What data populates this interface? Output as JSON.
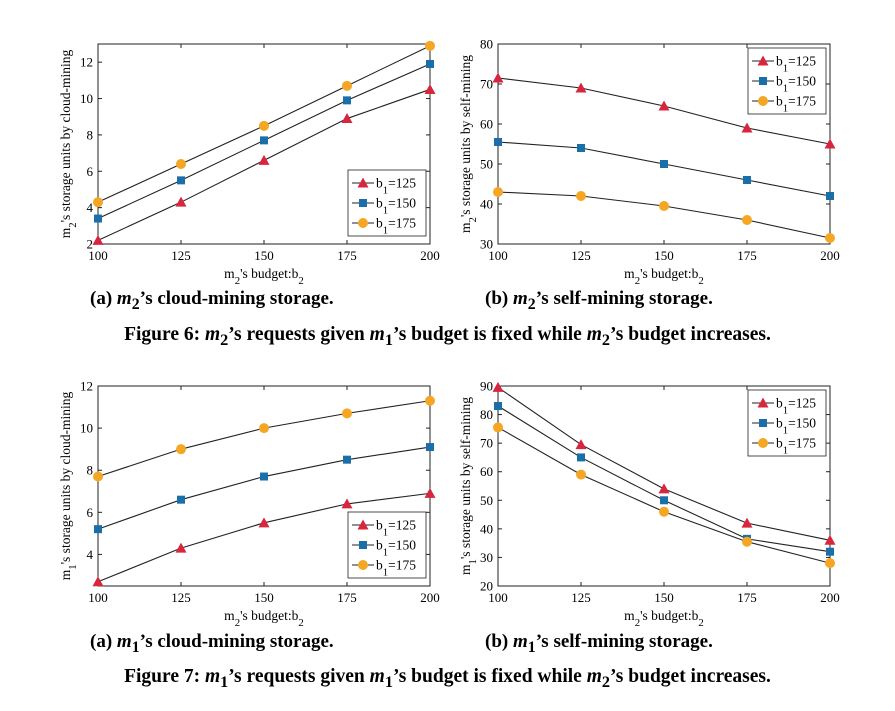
{
  "colors": {
    "b1_125": "#d7263d",
    "b1_150": "#1a6fa8",
    "b1_175": "#f5a623"
  },
  "figures": [
    {
      "caption": {
        "prefix": "Figure 6: ",
        "parts": [
          "m",
          "2",
          "’s requests given ",
          "m",
          "1",
          "’s budget is fixed while ",
          "m",
          "2",
          "’s budget increases."
        ]
      }
    },
    {
      "caption": {
        "prefix": "Figure 7: ",
        "parts": [
          "m",
          "1",
          "’s requests given ",
          "m",
          "1",
          "’s budget is fixed while ",
          "m",
          "2",
          "’s budget increases."
        ]
      }
    }
  ],
  "subcaptions": [
    {
      "label": "(a) ",
      "m": "m",
      "sub": "2",
      "text": "’s cloud-mining storage."
    },
    {
      "label": "(b) ",
      "m": "m",
      "sub": "2",
      "text": "’s self-mining storage."
    },
    {
      "label": "(a) ",
      "m": "m",
      "sub": "1",
      "text": "’s cloud-mining storage."
    },
    {
      "label": "(b) ",
      "m": "m",
      "sub": "1",
      "text": "’s self-mining storage."
    }
  ],
  "chart_data": [
    {
      "type": "line",
      "xlabel": "m_2's budget:b_2",
      "ylabel": "m_2's storage units by cloud-mining",
      "x": [
        100,
        125,
        150,
        175,
        200
      ],
      "xlim": [
        100,
        200
      ],
      "ylim": [
        2,
        13
      ],
      "yticks": [
        2,
        4,
        6,
        8,
        10,
        12
      ],
      "xticks": [
        100,
        125,
        150,
        175,
        200
      ],
      "legend": "lower-right",
      "series": [
        {
          "name": "b_1=125",
          "marker": "triangle",
          "values": [
            2.2,
            4.3,
            6.6,
            8.9,
            10.5
          ]
        },
        {
          "name": "b_1=150",
          "marker": "square",
          "values": [
            3.4,
            5.5,
            7.7,
            9.9,
            11.9
          ]
        },
        {
          "name": "b_1=175",
          "marker": "circle",
          "values": [
            4.3,
            6.4,
            8.5,
            10.7,
            12.9
          ]
        }
      ]
    },
    {
      "type": "line",
      "xlabel": "m_2's budget:b_2",
      "ylabel": "m_2's storage units by self-mining",
      "x": [
        100,
        125,
        150,
        175,
        200
      ],
      "xlim": [
        100,
        200
      ],
      "ylim": [
        30,
        80
      ],
      "yticks": [
        30,
        40,
        50,
        60,
        70,
        80
      ],
      "xticks": [
        100,
        125,
        150,
        175,
        200
      ],
      "legend": "top-right",
      "series": [
        {
          "name": "b_1=125",
          "marker": "triangle",
          "values": [
            71.5,
            69,
            64.5,
            59,
            55
          ]
        },
        {
          "name": "b_1=150",
          "marker": "square",
          "values": [
            55.5,
            54,
            50,
            46,
            42
          ]
        },
        {
          "name": "b_1=175",
          "marker": "circle",
          "values": [
            43,
            42,
            39.5,
            36,
            31.5
          ]
        }
      ]
    },
    {
      "type": "line",
      "xlabel": "m_2's budget:b_2",
      "ylabel": "m_1's storage units by cloud-mining",
      "x": [
        100,
        125,
        150,
        175,
        200
      ],
      "xlim": [
        100,
        200
      ],
      "ylim": [
        2.5,
        12
      ],
      "yticks": [
        4,
        6,
        8,
        10,
        12
      ],
      "xticks": [
        100,
        125,
        150,
        175,
        200
      ],
      "legend": "lower-right",
      "series": [
        {
          "name": "b_1=125",
          "marker": "triangle",
          "values": [
            2.7,
            4.3,
            5.5,
            6.4,
            6.9
          ]
        },
        {
          "name": "b_1=150",
          "marker": "square",
          "values": [
            5.2,
            6.6,
            7.7,
            8.5,
            9.1
          ]
        },
        {
          "name": "b_1=175",
          "marker": "circle",
          "values": [
            7.7,
            9.0,
            10.0,
            10.7,
            11.3
          ]
        }
      ]
    },
    {
      "type": "line",
      "xlabel": "m_2's budget:b_2",
      "ylabel": "m_1's storage units by self-mining",
      "x": [
        100,
        125,
        150,
        175,
        200
      ],
      "xlim": [
        100,
        200
      ],
      "ylim": [
        20,
        90
      ],
      "yticks": [
        20,
        30,
        40,
        50,
        60,
        70,
        80,
        90
      ],
      "xticks": [
        100,
        125,
        150,
        175,
        200
      ],
      "legend": "top-right",
      "series": [
        {
          "name": "b_1=125",
          "marker": "triangle",
          "values": [
            89.5,
            69.5,
            54,
            42,
            36
          ]
        },
        {
          "name": "b_1=150",
          "marker": "square",
          "values": [
            83,
            65,
            50,
            36.5,
            32
          ]
        },
        {
          "name": "b_1=175",
          "marker": "circle",
          "values": [
            75.5,
            59,
            46,
            35.5,
            28
          ]
        }
      ]
    }
  ]
}
